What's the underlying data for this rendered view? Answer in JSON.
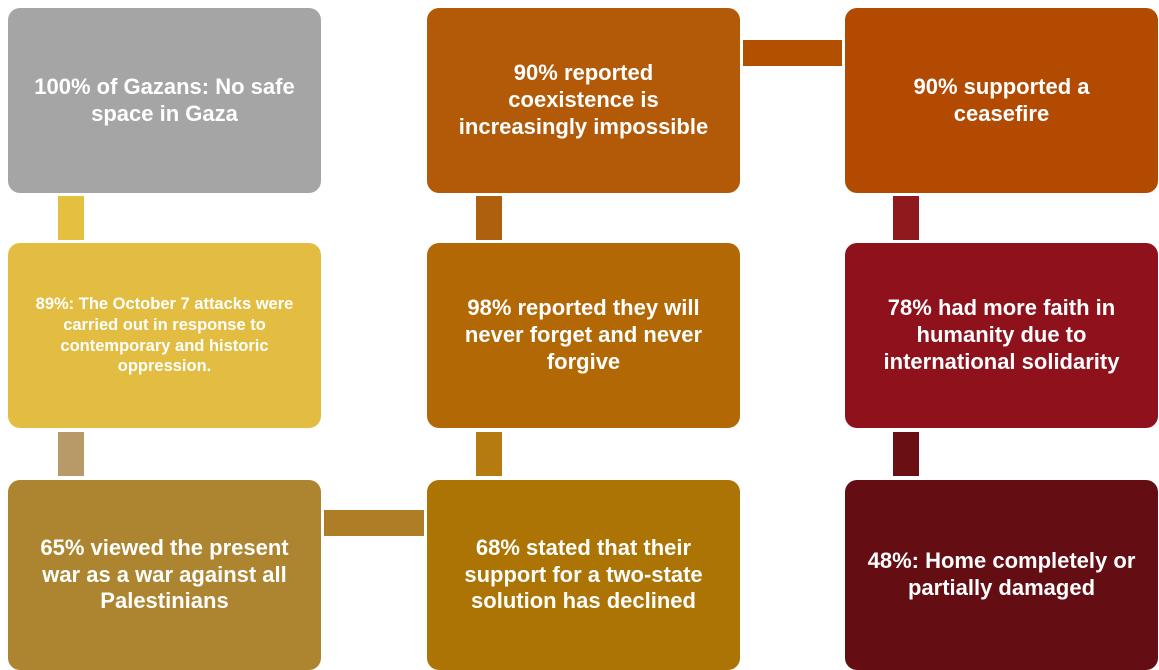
{
  "nodes": [
    {
      "label": "100% of Gazans: No safe space in Gaza"
    },
    {
      "label": "89%: The October 7 attacks were carried out in response to contemporary and historic oppression."
    },
    {
      "label": "65% viewed the present war as a war against all Palestinians"
    },
    {
      "label": "90% reported coexistence is increasingly impossible"
    },
    {
      "label": "98% reported they will never forget and never forgive"
    },
    {
      "label": "68% stated that their support for a two-state solution has declined"
    },
    {
      "label": "90% supported a ceasefire"
    },
    {
      "label": "78% had more faith in humanity due to international solidarity"
    },
    {
      "label": "48%: Home completely or partially damaged"
    }
  ]
}
